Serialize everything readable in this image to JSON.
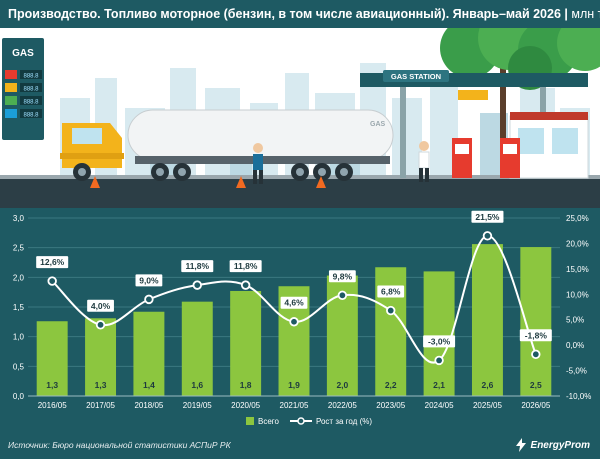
{
  "header": {
    "title": "Производство. Топливо моторное (бензин, в том числе авиационный). Январь–май 2026",
    "separator": "|",
    "unit": "млн тонн"
  },
  "illustration": {
    "gas_pole_label": "GAS",
    "price_board": [
      "888.8",
      "888.8",
      "888.8",
      "888.8"
    ],
    "station_sign": "GAS STATION",
    "tank_label": "GAS"
  },
  "chart_data": {
    "type": "bar",
    "categories": [
      "2016/05",
      "2017/05",
      "2018/05",
      "2019/05",
      "2020/05",
      "2021/05",
      "2022/05",
      "2023/05",
      "2024/05",
      "2025/05",
      "2026/05"
    ],
    "series": [
      {
        "name": "Всего",
        "type": "bar",
        "axis": "left",
        "values": [
          1.26,
          1.31,
          1.42,
          1.59,
          1.77,
          1.85,
          2.03,
          2.17,
          2.1,
          2.56,
          2.51
        ],
        "labels": [
          "1,3",
          "1,3",
          "1,4",
          "1,6",
          "1,8",
          "1,9",
          "2,0",
          "2,2",
          "2,1",
          "2,6",
          "2,5"
        ],
        "color": "#8cc63f"
      },
      {
        "name": "Рост за год (%)",
        "type": "line",
        "axis": "right",
        "values": [
          12.6,
          4.0,
          9.0,
          11.8,
          11.8,
          4.6,
          9.8,
          6.8,
          -3.0,
          21.5,
          -1.8
        ],
        "labels": [
          "12,6%",
          "4,0%",
          "9,0%",
          "11,8%",
          "11,8%",
          "4,6%",
          "9,8%",
          "6,8%",
          "-3,0%",
          "21,5%",
          "-1,8%"
        ],
        "color": "#ffffff"
      }
    ],
    "y_left": {
      "range": [
        0,
        3
      ],
      "ticks": [
        0,
        0.5,
        1,
        1.5,
        2,
        2.5,
        3
      ],
      "tick_labels": [
        "0,0",
        "0,5",
        "1,0",
        "1,5",
        "2,0",
        "2,5",
        "3,0"
      ]
    },
    "y_right": {
      "range": [
        -10,
        25
      ],
      "ticks": [
        -10,
        -5,
        0,
        5,
        10,
        15,
        20,
        25
      ],
      "tick_labels": [
        "-10,0%",
        "-5,0%",
        "0,0%",
        "5,0%",
        "10,0%",
        "15,0%",
        "20,0%",
        "25,0%"
      ]
    },
    "grid": true,
    "legend": "bottom-center"
  },
  "footer": {
    "source": "Источник: Бюро национальной статистики АСПиР РК",
    "logo": "EnergyProm"
  },
  "colors": {
    "background": "#1e5a63",
    "bar": "#8cc63f",
    "line": "#ffffff",
    "grid": "#3b7880"
  }
}
